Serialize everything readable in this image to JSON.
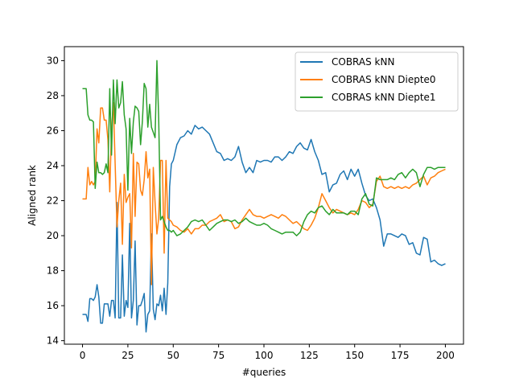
{
  "chart_data": {
    "type": "line",
    "title": "",
    "xlabel": "#queries",
    "ylabel": "Aligned rank",
    "xlim": [
      -10,
      210
    ],
    "ylim": [
      13.8,
      30.8
    ],
    "xticks": [
      0,
      25,
      50,
      75,
      100,
      125,
      150,
      175,
      200
    ],
    "yticks": [
      14,
      16,
      18,
      20,
      22,
      24,
      26,
      28,
      30
    ],
    "grid": false,
    "legend_position": "top-right",
    "series": [
      {
        "name": "COBRAS kNN",
        "color": "#1f77b4",
        "x": [
          0,
          1,
          2,
          3,
          4,
          5,
          6,
          7,
          8,
          9,
          10,
          11,
          12,
          13,
          14,
          15,
          16,
          17,
          18,
          19,
          20,
          21,
          22,
          23,
          24,
          25,
          26,
          27,
          28,
          29,
          30,
          31,
          32,
          33,
          34,
          35,
          36,
          37,
          38,
          39,
          40,
          41,
          42,
          43,
          44,
          45,
          46,
          47,
          48,
          49,
          50,
          52,
          54,
          56,
          58,
          60,
          62,
          64,
          66,
          68,
          70,
          72,
          74,
          76,
          78,
          80,
          82,
          84,
          86,
          88,
          90,
          92,
          94,
          96,
          98,
          100,
          102,
          104,
          106,
          108,
          110,
          112,
          114,
          116,
          118,
          120,
          122,
          124,
          126,
          128,
          130,
          132,
          134,
          136,
          138,
          140,
          142,
          144,
          146,
          148,
          150,
          152,
          154,
          156,
          158,
          160,
          162,
          164,
          166,
          168,
          170,
          172,
          174,
          176,
          178,
          180,
          182,
          184,
          186,
          188,
          190,
          192,
          194,
          196,
          198,
          200
        ],
        "y": [
          15.5,
          15.5,
          15.5,
          15.1,
          16.4,
          16.4,
          16.3,
          16.5,
          17.2,
          16.5,
          15.0,
          15.0,
          16.1,
          16.1,
          16.1,
          15.4,
          16.3,
          16.3,
          15.3,
          21.9,
          15.3,
          15.3,
          18.9,
          15.4,
          16.3,
          15.9,
          20.7,
          15.3,
          16.3,
          19.7,
          14.9,
          16.0,
          16.0,
          16.3,
          16.7,
          14.5,
          15.5,
          15.7,
          20.1,
          15.8,
          15.2,
          16.1,
          16.0,
          16.6,
          15.7,
          17.0,
          15.5,
          17.3,
          22.8,
          24.1,
          24.3,
          25.2,
          25.6,
          25.7,
          26.0,
          25.8,
          26.3,
          26.1,
          26.2,
          26.0,
          25.8,
          25.3,
          24.8,
          24.7,
          24.3,
          24.4,
          24.3,
          24.5,
          25.1,
          24.2,
          23.6,
          23.9,
          23.6,
          24.3,
          24.2,
          24.3,
          24.3,
          24.2,
          24.5,
          24.5,
          24.3,
          24.5,
          24.8,
          24.7,
          25.1,
          25.3,
          25.0,
          24.9,
          25.5,
          24.8,
          24.3,
          23.5,
          23.6,
          22.5,
          22.9,
          23.0,
          23.5,
          23.7,
          23.2,
          23.8,
          23.4,
          23.8,
          23.0,
          22.3,
          22.0,
          22.1,
          21.6,
          20.9,
          19.4,
          20.1,
          20.1,
          20.0,
          19.9,
          20.1,
          20.0,
          19.5,
          19.6,
          19.0,
          18.9,
          19.9,
          19.8,
          18.5,
          18.6,
          18.4,
          18.3,
          18.4
        ]
      },
      {
        "name": "COBRAS kNN Diepte0",
        "color": "#ff7f0e",
        "x": [
          0,
          1,
          2,
          3,
          4,
          5,
          6,
          7,
          8,
          9,
          10,
          11,
          12,
          13,
          14,
          15,
          16,
          17,
          18,
          19,
          20,
          21,
          22,
          23,
          24,
          25,
          26,
          27,
          28,
          29,
          30,
          31,
          32,
          33,
          34,
          35,
          36,
          37,
          38,
          39,
          40,
          41,
          42,
          43,
          44,
          45,
          46,
          47,
          48,
          49,
          50,
          52,
          54,
          56,
          58,
          60,
          62,
          64,
          66,
          68,
          70,
          72,
          74,
          76,
          78,
          80,
          82,
          84,
          86,
          88,
          90,
          92,
          94,
          96,
          98,
          100,
          102,
          104,
          106,
          108,
          110,
          112,
          114,
          116,
          118,
          120,
          122,
          124,
          126,
          128,
          130,
          132,
          134,
          136,
          138,
          140,
          142,
          144,
          146,
          148,
          150,
          152,
          154,
          156,
          158,
          160,
          162,
          164,
          166,
          168,
          170,
          172,
          174,
          176,
          178,
          180,
          182,
          184,
          186,
          188,
          190,
          192,
          194,
          196,
          198,
          200
        ],
        "y": [
          22.1,
          22.1,
          22.1,
          23.9,
          22.9,
          23.1,
          22.9,
          23.1,
          26.1,
          25.3,
          27.3,
          27.3,
          26.6,
          26.6,
          25.5,
          22.5,
          26.1,
          27.6,
          24.1,
          20.5,
          22.0,
          23.0,
          19.5,
          23.5,
          21.9,
          22.2,
          22.4,
          19.3,
          24.7,
          21.1,
          24.2,
          24.1,
          22.6,
          22.3,
          23.2,
          24.8,
          23.3,
          23.8,
          17.2,
          23.9,
          21.9,
          20.1,
          21.0,
          24.3,
          24.3,
          19.0,
          24.3,
          21.0,
          20.9,
          20.8,
          20.6,
          20.5,
          20.3,
          20.2,
          20.4,
          20.1,
          20.4,
          20.4,
          20.6,
          20.6,
          20.8,
          20.9,
          21.0,
          21.2,
          20.8,
          20.9,
          20.8,
          20.4,
          20.5,
          20.9,
          21.2,
          21.5,
          21.2,
          21.1,
          21.1,
          21.0,
          21.1,
          21.2,
          21.1,
          21.0,
          21.2,
          21.1,
          20.9,
          20.7,
          20.8,
          20.6,
          20.4,
          20.3,
          20.6,
          21.0,
          21.6,
          22.4,
          22.0,
          21.6,
          21.3,
          21.5,
          21.4,
          21.3,
          21.2,
          21.3,
          21.2,
          21.5,
          22.0,
          21.9,
          21.6,
          21.8,
          23.1,
          23.4,
          22.8,
          22.7,
          22.8,
          22.7,
          22.8,
          22.7,
          22.8,
          22.7,
          22.9,
          23.0,
          23.2,
          23.4,
          22.9,
          23.3,
          23.4,
          23.6,
          23.7,
          23.8
        ]
      },
      {
        "name": "COBRAS kNN Diepte1",
        "color": "#2ca02c",
        "x": [
          0,
          1,
          2,
          3,
          4,
          5,
          6,
          7,
          8,
          9,
          10,
          11,
          12,
          13,
          14,
          15,
          16,
          17,
          18,
          19,
          20,
          21,
          22,
          23,
          24,
          25,
          26,
          27,
          28,
          29,
          30,
          31,
          32,
          33,
          34,
          35,
          36,
          37,
          38,
          39,
          40,
          41,
          42,
          43,
          44,
          45,
          46,
          47,
          48,
          49,
          50,
          52,
          54,
          56,
          58,
          60,
          62,
          64,
          66,
          68,
          70,
          72,
          74,
          76,
          78,
          80,
          82,
          84,
          86,
          88,
          90,
          92,
          94,
          96,
          98,
          100,
          102,
          104,
          106,
          108,
          110,
          112,
          114,
          116,
          118,
          120,
          122,
          124,
          126,
          128,
          130,
          132,
          134,
          136,
          138,
          140,
          142,
          144,
          146,
          148,
          150,
          152,
          154,
          156,
          158,
          160,
          162,
          164,
          166,
          168,
          170,
          172,
          174,
          176,
          178,
          180,
          182,
          184,
          186,
          188,
          190,
          192,
          194,
          196,
          198,
          200
        ],
        "y": [
          28.4,
          28.4,
          28.4,
          26.9,
          26.6,
          26.6,
          26.5,
          22.7,
          24.2,
          23.6,
          23.6,
          23.5,
          23.6,
          24.1,
          23.6,
          28.4,
          24.6,
          28.9,
          26.4,
          28.9,
          27.3,
          27.6,
          28.8,
          26.9,
          26.1,
          22.6,
          26.7,
          24.7,
          26.5,
          27.4,
          27.3,
          27.1,
          25.2,
          26.5,
          28.7,
          28.4,
          26.2,
          27.5,
          26.2,
          25.9,
          25.6,
          30.0,
          26.7,
          20.9,
          21.1,
          20.8,
          20.5,
          20.3,
          20.3,
          20.2,
          20.3,
          20.0,
          20.1,
          20.3,
          20.5,
          20.8,
          20.9,
          20.8,
          20.9,
          20.6,
          20.3,
          20.5,
          20.7,
          20.8,
          20.9,
          20.9,
          20.8,
          20.9,
          20.7,
          20.8,
          21.0,
          20.8,
          20.7,
          20.6,
          20.6,
          20.7,
          20.6,
          20.4,
          20.3,
          20.2,
          20.1,
          20.2,
          20.2,
          20.2,
          20.0,
          20.2,
          20.8,
          21.2,
          21.4,
          21.3,
          21.6,
          21.7,
          21.4,
          21.2,
          21.5,
          21.3,
          21.3,
          21.3,
          21.2,
          21.4,
          21.4,
          21.2,
          22.1,
          22.4,
          21.8,
          21.7,
          23.3,
          23.2,
          23.2,
          23.2,
          23.3,
          23.2,
          23.5,
          23.6,
          23.3,
          23.6,
          23.8,
          23.6,
          22.8,
          23.5,
          23.9,
          23.9,
          23.8,
          23.9,
          23.9,
          23.9
        ]
      }
    ]
  }
}
